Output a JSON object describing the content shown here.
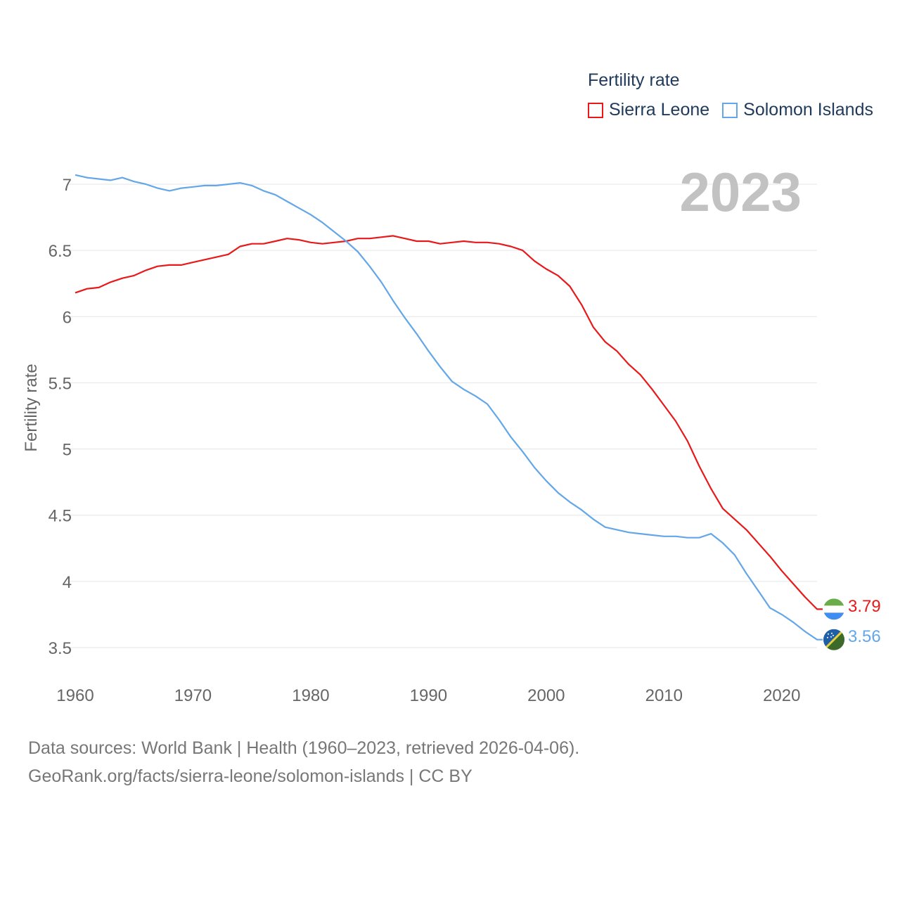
{
  "legend": {
    "title": "Fertility rate",
    "items": [
      {
        "name": "Sierra Leone",
        "color": "#e8191a"
      },
      {
        "name": "Solomon Islands",
        "color": "#63a7e8"
      }
    ]
  },
  "year_label": "2023",
  "end_labels": {
    "sierra_leone": "3.79",
    "solomon_islands": "3.56"
  },
  "source": {
    "line1": "Data sources: World Bank | Health (1960–2023, retrieved 2026-04-06).",
    "line2": "GeoRank.org/facts/sierra-leone/solomon-islands | CC BY"
  },
  "chart_data": {
    "type": "line",
    "title": "Fertility rate",
    "xlabel": "",
    "ylabel": "Fertility rate",
    "x": [
      1960,
      1961,
      1962,
      1963,
      1964,
      1965,
      1966,
      1967,
      1968,
      1969,
      1970,
      1971,
      1972,
      1973,
      1974,
      1975,
      1976,
      1977,
      1978,
      1979,
      1980,
      1981,
      1982,
      1983,
      1984,
      1985,
      1986,
      1987,
      1988,
      1989,
      1990,
      1991,
      1992,
      1993,
      1994,
      1995,
      1996,
      1997,
      1998,
      1999,
      2000,
      2001,
      2002,
      2003,
      2004,
      2005,
      2006,
      2007,
      2008,
      2009,
      2010,
      2011,
      2012,
      2013,
      2014,
      2015,
      2016,
      2017,
      2018,
      2019,
      2020,
      2021,
      2022,
      2023
    ],
    "xticks": [
      1960,
      1970,
      1980,
      1990,
      2000,
      2010,
      2020
    ],
    "yticks": [
      3.5,
      4,
      4.5,
      5,
      5.5,
      6,
      6.5,
      7
    ],
    "ytick_labels": [
      "3.5",
      "4",
      "4.5",
      "5",
      "5.5",
      "6",
      "6.5",
      "7"
    ],
    "xlim": [
      1960,
      2023
    ],
    "ylim": [
      3.3,
      7.3
    ],
    "grid": true,
    "legend_position": "top-right",
    "series": [
      {
        "name": "Sierra Leone",
        "color": "#e8191a",
        "values": [
          6.18,
          6.21,
          6.22,
          6.26,
          6.29,
          6.31,
          6.35,
          6.38,
          6.39,
          6.39,
          6.41,
          6.43,
          6.45,
          6.47,
          6.53,
          6.55,
          6.55,
          6.57,
          6.59,
          6.58,
          6.56,
          6.55,
          6.56,
          6.57,
          6.59,
          6.59,
          6.6,
          6.61,
          6.59,
          6.57,
          6.57,
          6.55,
          6.56,
          6.57,
          6.56,
          6.56,
          6.55,
          6.53,
          6.5,
          6.42,
          6.36,
          6.31,
          6.23,
          6.09,
          5.92,
          5.81,
          5.74,
          5.64,
          5.56,
          5.45,
          5.33,
          5.21,
          5.06,
          4.87,
          4.7,
          4.55,
          4.47,
          4.39,
          4.29,
          4.19,
          4.08,
          3.98,
          3.88,
          3.79
        ]
      },
      {
        "name": "Solomon Islands",
        "color": "#63a7e8",
        "values": [
          7.07,
          7.05,
          7.04,
          7.03,
          7.05,
          7.02,
          7.0,
          6.97,
          6.95,
          6.97,
          6.98,
          6.99,
          6.99,
          7.0,
          7.01,
          6.99,
          6.95,
          6.92,
          6.87,
          6.82,
          6.77,
          6.71,
          6.64,
          6.57,
          6.49,
          6.38,
          6.26,
          6.12,
          5.99,
          5.87,
          5.74,
          5.62,
          5.51,
          5.45,
          5.4,
          5.34,
          5.22,
          5.09,
          4.98,
          4.86,
          4.76,
          4.67,
          4.6,
          4.54,
          4.47,
          4.41,
          4.39,
          4.37,
          4.36,
          4.35,
          4.34,
          4.34,
          4.33,
          4.33,
          4.36,
          4.29,
          4.2,
          4.06,
          3.93,
          3.8,
          3.75,
          3.69,
          3.62,
          3.56
        ]
      }
    ]
  }
}
